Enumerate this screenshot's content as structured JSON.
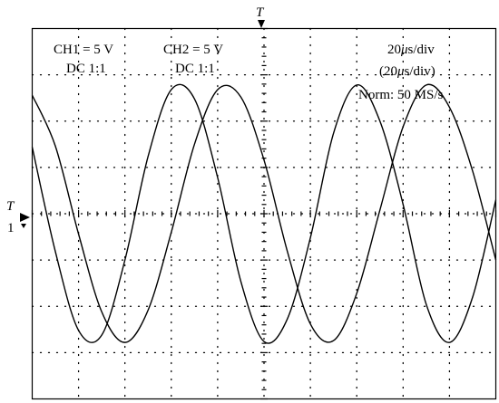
{
  "chart_data": {
    "type": "line",
    "title": "",
    "xlabel": "",
    "ylabel": "",
    "x_divisions": 10,
    "y_divisions": 8,
    "x_unit": "µs",
    "time_per_div_us": 20,
    "volts_per_div": 5,
    "xlim": [
      0,
      200
    ],
    "ylim": [
      -20,
      20
    ],
    "grid": true,
    "series": [
      {
        "name": "",
        "values_note": "",
        "x": [
          0,
          10,
          20,
          30,
          40,
          50,
          60,
          70,
          80,
          90,
          100,
          110,
          120,
          130,
          140,
          150,
          160,
          170,
          180,
          190,
          200
        ],
        "y": [
          12.8,
          7.3,
          -2.2,
          -10.6,
          -13.9,
          -10.4,
          -2.0,
          7.5,
          13.4,
          12.6,
          5.8,
          -4.0,
          -11.9,
          -13.7,
          -8.6,
          0.4,
          9.4,
          13.9,
          11.5,
          4.6,
          -5.0
        ]
      },
      {
        "name": "",
        "x": [
          0,
          10,
          20,
          30,
          40,
          50,
          60,
          70,
          80,
          90,
          100,
          110,
          120,
          130,
          140,
          150,
          160,
          170,
          180,
          190,
          200
        ],
        "y": [
          7.2,
          -4.1,
          -12.6,
          -13.1,
          -5.0,
          6.2,
          13.4,
          12.4,
          3.9,
          -7.3,
          -13.8,
          -11.4,
          -2.6,
          8.7,
          13.9,
          10.0,
          1.0,
          -9.8,
          -13.9,
          -9.0,
          1.5
        ]
      }
    ],
    "readouts": {
      "ch1": "CH1 = 5 V",
      "ch1_coupling": "DC 1:1",
      "ch2": "CH2 = 5 V",
      "ch2_coupling": "DC 1:1",
      "timebase_value": "20",
      "timebase_unit_mu": "μ",
      "timebase_unit_rest": "s/div",
      "timebase2_open": "(20",
      "timebase2_mu": "μ",
      "timebase2_rest": "s/div)",
      "acquisition": "Norm: 50 MS/s"
    },
    "markers": {
      "trigger_top": "T",
      "trigger_left": "T",
      "channel_ground": "1"
    }
  },
  "colors": {
    "trace": "#000000",
    "grid": "#000000",
    "background": "#ffffff"
  }
}
